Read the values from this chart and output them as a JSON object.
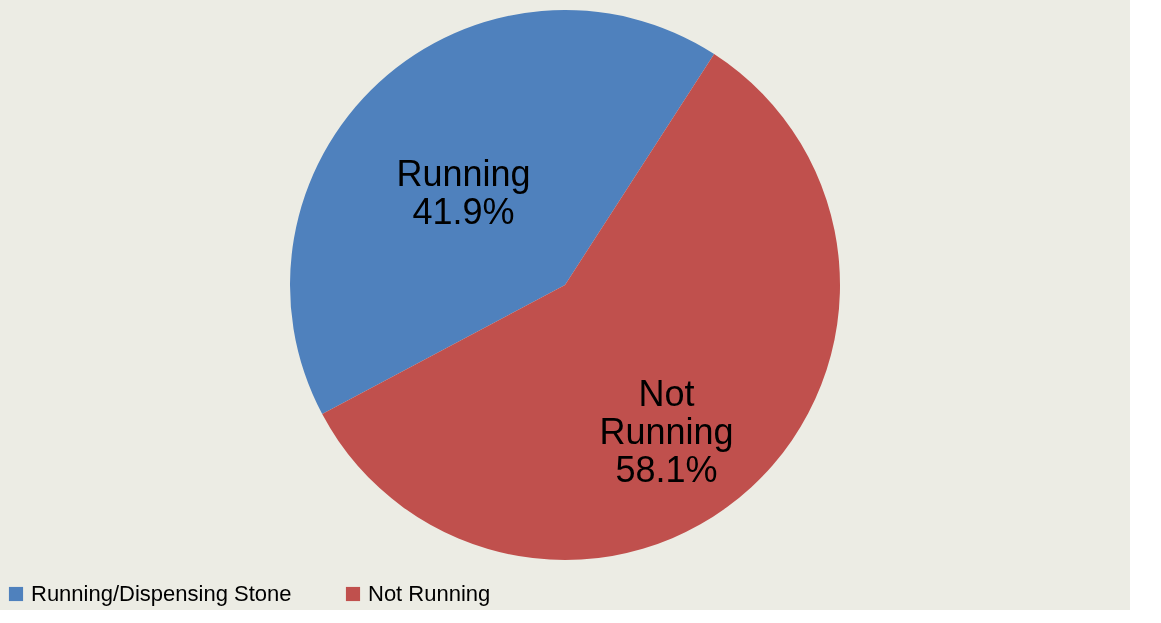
{
  "chart_data": {
    "type": "pie",
    "categories": [
      "Running/Dispensing Stone",
      "Not Running"
    ],
    "values": [
      41.9,
      58.1
    ],
    "colors": [
      "#4f81bd",
      "#c0504d"
    ],
    "value_labels": [
      "Running\n41.9%",
      "Not\nRunning\n58.1%"
    ],
    "legend": "bottom"
  }
}
